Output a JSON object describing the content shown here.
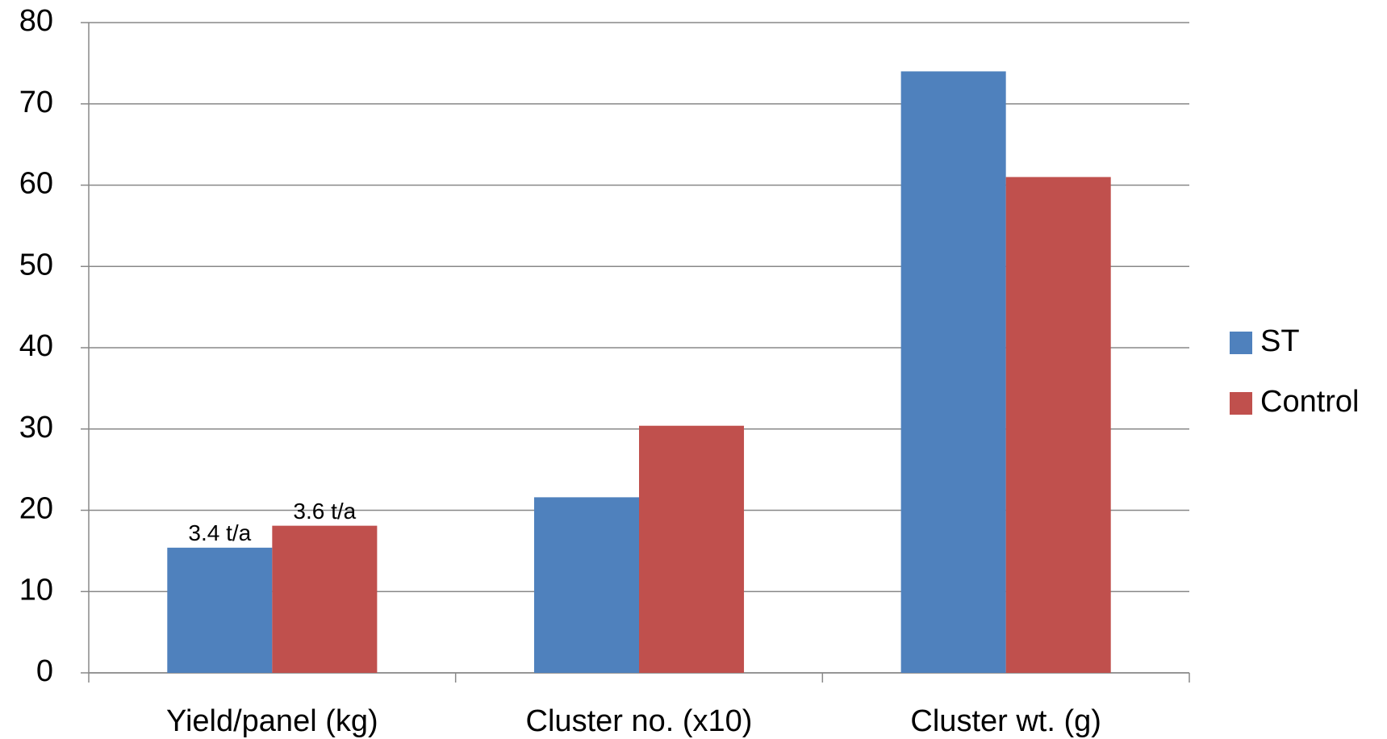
{
  "chart_data": {
    "type": "bar",
    "categories": [
      "Yield/panel (kg)",
      "Cluster no. (x10)",
      "Cluster wt. (g)"
    ],
    "series": [
      {
        "name": "ST",
        "color": "#4f81bd",
        "values": [
          15.4,
          21.6,
          74
        ],
        "annotations": [
          "3.4 t/a",
          null,
          null
        ]
      },
      {
        "name": "Control",
        "color": "#c0504d",
        "values": [
          18.1,
          30.4,
          61
        ],
        "annotations": [
          "3.6 t/a",
          null,
          null
        ]
      }
    ],
    "ylim": [
      0,
      80
    ],
    "yticks": [
      0,
      10,
      20,
      30,
      40,
      50,
      60,
      70,
      80
    ],
    "grid": true,
    "legend": "right"
  }
}
